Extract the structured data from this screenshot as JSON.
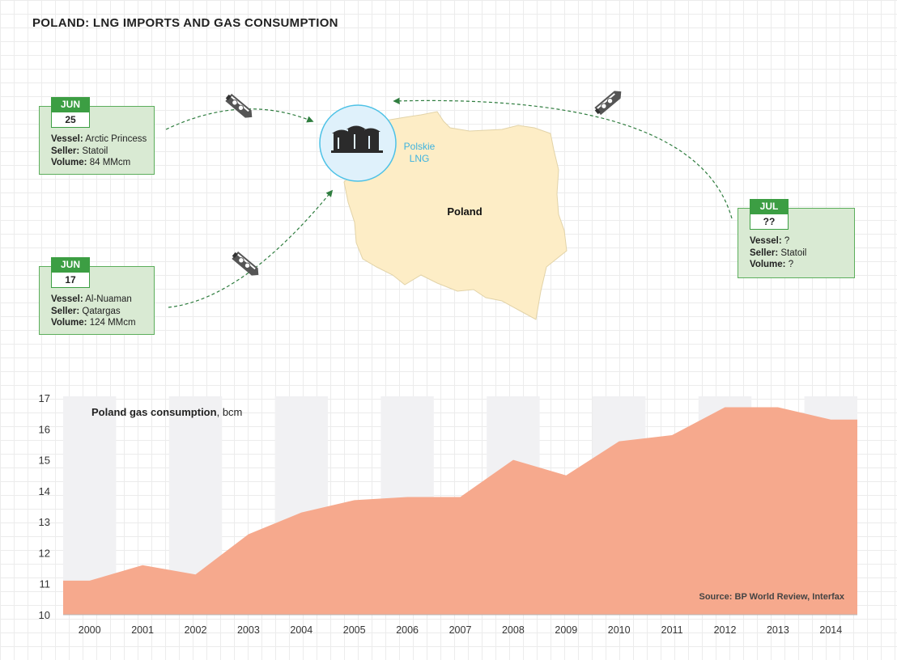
{
  "title": "POLAND: LNG IMPORTS AND GAS CONSUMPTION",
  "map": {
    "country_label": "Poland",
    "terminal_label_line1": "Polskie",
    "terminal_label_line2": "LNG",
    "colors": {
      "country": "#fdedc6",
      "terminal": "#dff1fb",
      "terminal_border": "#4ec2e6",
      "arrow": "#2f7d3f"
    },
    "shipments": [
      {
        "month": "JUN",
        "day": "25",
        "vessel_label": "Vessel:",
        "vessel": "Arctic Princess",
        "seller_label": "Seller:",
        "seller": "Statoil",
        "volume_label": "Volume:",
        "volume": "84 MMcm"
      },
      {
        "month": "JUN",
        "day": "17",
        "vessel_label": "Vessel:",
        "vessel": "Al-Nuaman",
        "seller_label": "Seller:",
        "seller": "Qatargas",
        "volume_label": "Volume:",
        "volume": "124 MMcm"
      },
      {
        "month": "JUL",
        "day": "??",
        "vessel_label": "Vessel:",
        "vessel": "?",
        "seller_label": "Seller:",
        "seller": "Statoil",
        "volume_label": "Volume:",
        "volume": "?"
      }
    ],
    "icons": [
      "lng-tanker-icon",
      "lng-storage-tank-icon"
    ]
  },
  "chart_data": {
    "type": "area",
    "title": "Poland gas consumption",
    "unit": "bcm",
    "categories": [
      "2000",
      "2001",
      "2002",
      "2003",
      "2004",
      "2005",
      "2006",
      "2007",
      "2008",
      "2009",
      "2010",
      "2011",
      "2012",
      "2013",
      "2014"
    ],
    "series": [
      {
        "values": [
          11.1,
          11.6,
          11.3,
          12.6,
          13.3,
          13.7,
          13.8,
          13.8,
          15.0,
          14.5,
          15.6,
          15.8,
          16.7,
          16.7,
          16.3
        ]
      }
    ],
    "ylim": [
      10,
      17
    ],
    "yticks": [
      "10",
      "11",
      "12",
      "13",
      "14",
      "15",
      "16",
      "17"
    ],
    "source": "Source: BP World Review, Interfax",
    "colors": {
      "area": "#f6a98d",
      "band": "#f1f1f3"
    }
  }
}
